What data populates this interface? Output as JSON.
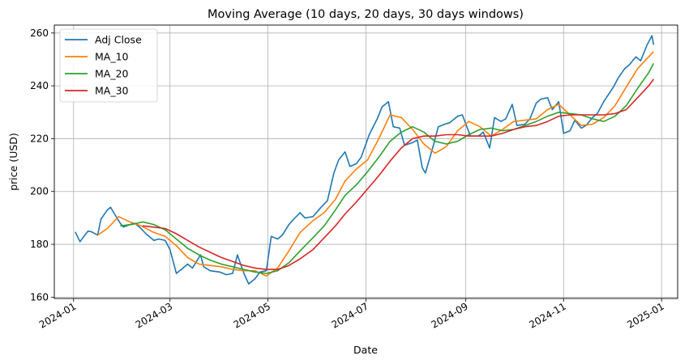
{
  "chart_data": {
    "type": "line",
    "title": "Moving Average (10 days, 20 days, 30 days windows)",
    "xlabel": "Date",
    "ylabel": "price (USD)",
    "grid": true,
    "legend": "top-left",
    "xlim": [
      "2023-12-20",
      "2025-01-11"
    ],
    "ylim": [
      159.5,
      263.0
    ],
    "xticks": [
      "2024-01",
      "2024-03",
      "2024-05",
      "2024-07",
      "2024-09",
      "2024-11",
      "2025-01"
    ],
    "yticks": [
      160,
      180,
      200,
      220,
      240,
      260
    ],
    "series": [
      {
        "name": "Adj Close",
        "color": "#1f77b4",
        "points": [
          [
            "2024-01-02",
            184.7
          ],
          [
            "2024-01-05",
            181.0
          ],
          [
            "2024-01-08",
            183.5
          ],
          [
            "2024-01-10",
            185.0
          ],
          [
            "2024-01-12",
            184.8
          ],
          [
            "2024-01-16",
            183.5
          ],
          [
            "2024-01-18",
            189.5
          ],
          [
            "2024-01-22",
            193.0
          ],
          [
            "2024-01-24",
            194.0
          ],
          [
            "2024-01-26",
            192.0
          ],
          [
            "2024-01-30",
            188.0
          ],
          [
            "2024-02-01",
            186.5
          ],
          [
            "2024-02-05",
            187.5
          ],
          [
            "2024-02-08",
            188.0
          ],
          [
            "2024-02-12",
            186.0
          ],
          [
            "2024-02-15",
            184.0
          ],
          [
            "2024-02-20",
            181.5
          ],
          [
            "2024-02-23",
            182.0
          ],
          [
            "2024-02-27",
            181.5
          ],
          [
            "2024-03-01",
            178.0
          ],
          [
            "2024-03-05",
            169.0
          ],
          [
            "2024-03-08",
            170.5
          ],
          [
            "2024-03-12",
            172.5
          ],
          [
            "2024-03-15",
            171.0
          ],
          [
            "2024-03-20",
            176.0
          ],
          [
            "2024-03-22",
            171.5
          ],
          [
            "2024-03-26",
            170.0
          ],
          [
            "2024-04-01",
            169.5
          ],
          [
            "2024-04-05",
            168.5
          ],
          [
            "2024-04-09",
            169.0
          ],
          [
            "2024-04-12",
            176.0
          ],
          [
            "2024-04-16",
            169.0
          ],
          [
            "2024-04-19",
            165.0
          ],
          [
            "2024-04-23",
            167.0
          ],
          [
            "2024-04-26",
            169.5
          ],
          [
            "2024-04-30",
            170.0
          ],
          [
            "2024-05-03",
            183.0
          ],
          [
            "2024-05-07",
            182.0
          ],
          [
            "2024-05-10",
            183.5
          ],
          [
            "2024-05-14",
            187.5
          ],
          [
            "2024-05-17",
            189.5
          ],
          [
            "2024-05-21",
            192.0
          ],
          [
            "2024-05-24",
            190.0
          ],
          [
            "2024-05-29",
            190.5
          ],
          [
            "2024-06-03",
            194.0
          ],
          [
            "2024-06-07",
            196.5
          ],
          [
            "2024-06-11",
            207.0
          ],
          [
            "2024-06-14",
            212.0
          ],
          [
            "2024-06-18",
            215.0
          ],
          [
            "2024-06-21",
            209.5
          ],
          [
            "2024-06-25",
            210.5
          ],
          [
            "2024-06-28",
            213.0
          ],
          [
            "2024-07-03",
            221.5
          ],
          [
            "2024-07-08",
            227.5
          ],
          [
            "2024-07-11",
            232.0
          ],
          [
            "2024-07-15",
            234.0
          ],
          [
            "2024-07-18",
            224.5
          ],
          [
            "2024-07-22",
            224.0
          ],
          [
            "2024-07-25",
            217.5
          ],
          [
            "2024-07-30",
            218.5
          ],
          [
            "2024-08-02",
            219.5
          ],
          [
            "2024-08-05",
            209.0
          ],
          [
            "2024-08-07",
            207.0
          ],
          [
            "2024-08-12",
            217.5
          ],
          [
            "2024-08-15",
            224.5
          ],
          [
            "2024-08-19",
            225.5
          ],
          [
            "2024-08-22",
            226.0
          ],
          [
            "2024-08-27",
            228.5
          ],
          [
            "2024-08-30",
            229.0
          ],
          [
            "2024-09-04",
            221.0
          ],
          [
            "2024-09-09",
            221.0
          ],
          [
            "2024-09-12",
            222.5
          ],
          [
            "2024-09-16",
            216.5
          ],
          [
            "2024-09-19",
            228.0
          ],
          [
            "2024-09-23",
            226.5
          ],
          [
            "2024-09-26",
            227.5
          ],
          [
            "2024-09-30",
            233.0
          ],
          [
            "2024-10-03",
            225.0
          ],
          [
            "2024-10-08",
            225.5
          ],
          [
            "2024-10-11",
            227.5
          ],
          [
            "2024-10-15",
            233.5
          ],
          [
            "2024-10-18",
            235.0
          ],
          [
            "2024-10-22",
            235.5
          ],
          [
            "2024-10-25",
            231.0
          ],
          [
            "2024-10-29",
            234.0
          ],
          [
            "2024-11-01",
            222.0
          ],
          [
            "2024-11-05",
            223.0
          ],
          [
            "2024-11-08",
            227.0
          ],
          [
            "2024-11-12",
            224.0
          ],
          [
            "2024-11-15",
            225.0
          ],
          [
            "2024-11-19",
            228.0
          ],
          [
            "2024-11-22",
            229.5
          ],
          [
            "2024-11-26",
            234.0
          ],
          [
            "2024-12-02",
            239.5
          ],
          [
            "2024-12-05",
            243.0
          ],
          [
            "2024-12-09",
            246.5
          ],
          [
            "2024-12-12",
            248.0
          ],
          [
            "2024-12-16",
            251.0
          ],
          [
            "2024-12-19",
            249.5
          ],
          [
            "2024-12-23",
            255.5
          ],
          [
            "2024-12-26",
            259.0
          ],
          [
            "2024-12-27",
            255.5
          ]
        ]
      },
      {
        "name": "MA_10",
        "color": "#ff7f0e",
        "points": [
          [
            "2024-01-16",
            183.5
          ],
          [
            "2024-01-22",
            186.0
          ],
          [
            "2024-01-29",
            190.5
          ],
          [
            "2024-02-05",
            188.5
          ],
          [
            "2024-02-12",
            187.0
          ],
          [
            "2024-02-20",
            184.5
          ],
          [
            "2024-02-27",
            183.0
          ],
          [
            "2024-03-05",
            179.5
          ],
          [
            "2024-03-12",
            175.0
          ],
          [
            "2024-03-19",
            172.5
          ],
          [
            "2024-03-26",
            172.0
          ],
          [
            "2024-04-02",
            171.5
          ],
          [
            "2024-04-09",
            170.5
          ],
          [
            "2024-04-16",
            170.0
          ],
          [
            "2024-04-23",
            170.0
          ],
          [
            "2024-04-30",
            168.0
          ],
          [
            "2024-05-07",
            171.0
          ],
          [
            "2024-05-14",
            177.5
          ],
          [
            "2024-05-21",
            184.5
          ],
          [
            "2024-05-29",
            189.0
          ],
          [
            "2024-06-05",
            192.0
          ],
          [
            "2024-06-12",
            197.0
          ],
          [
            "2024-06-18",
            204.0
          ],
          [
            "2024-06-25",
            208.5
          ],
          [
            "2024-07-02",
            212.0
          ],
          [
            "2024-07-09",
            220.0
          ],
          [
            "2024-07-16",
            229.0
          ],
          [
            "2024-07-23",
            228.0
          ],
          [
            "2024-07-30",
            223.5
          ],
          [
            "2024-08-06",
            218.0
          ],
          [
            "2024-08-13",
            214.5
          ],
          [
            "2024-08-20",
            217.0
          ],
          [
            "2024-08-27",
            223.0
          ],
          [
            "2024-09-03",
            226.5
          ],
          [
            "2024-09-10",
            224.5
          ],
          [
            "2024-09-17",
            221.0
          ],
          [
            "2024-09-24",
            223.5
          ],
          [
            "2024-10-01",
            226.5
          ],
          [
            "2024-10-08",
            227.0
          ],
          [
            "2024-10-15",
            227.5
          ],
          [
            "2024-10-22",
            231.0
          ],
          [
            "2024-10-29",
            233.0
          ],
          [
            "2024-11-05",
            229.0
          ],
          [
            "2024-11-12",
            225.0
          ],
          [
            "2024-11-19",
            225.5
          ],
          [
            "2024-11-26",
            228.0
          ],
          [
            "2024-12-03",
            232.5
          ],
          [
            "2024-12-10",
            239.5
          ],
          [
            "2024-12-17",
            246.5
          ],
          [
            "2024-12-24",
            251.0
          ],
          [
            "2024-12-27",
            253.0
          ]
        ]
      },
      {
        "name": "MA_20",
        "color": "#2ca02c",
        "points": [
          [
            "2024-01-30",
            187.0
          ],
          [
            "2024-02-06",
            187.5
          ],
          [
            "2024-02-13",
            188.5
          ],
          [
            "2024-02-20",
            187.5
          ],
          [
            "2024-02-27",
            185.5
          ],
          [
            "2024-03-05",
            182.0
          ],
          [
            "2024-03-12",
            178.5
          ],
          [
            "2024-03-19",
            176.0
          ],
          [
            "2024-03-26",
            174.0
          ],
          [
            "2024-04-02",
            172.5
          ],
          [
            "2024-04-09",
            171.5
          ],
          [
            "2024-04-16",
            170.5
          ],
          [
            "2024-04-23",
            169.5
          ],
          [
            "2024-04-30",
            169.0
          ],
          [
            "2024-05-07",
            170.0
          ],
          [
            "2024-05-14",
            173.0
          ],
          [
            "2024-05-21",
            177.5
          ],
          [
            "2024-05-29",
            182.5
          ],
          [
            "2024-06-05",
            187.0
          ],
          [
            "2024-06-12",
            193.0
          ],
          [
            "2024-06-18",
            198.5
          ],
          [
            "2024-06-25",
            202.5
          ],
          [
            "2024-07-02",
            207.5
          ],
          [
            "2024-07-09",
            213.0
          ],
          [
            "2024-07-16",
            219.0
          ],
          [
            "2024-07-23",
            222.5
          ],
          [
            "2024-07-30",
            224.5
          ],
          [
            "2024-08-06",
            222.5
          ],
          [
            "2024-08-13",
            219.0
          ],
          [
            "2024-08-20",
            218.0
          ],
          [
            "2024-08-27",
            219.0
          ],
          [
            "2024-09-03",
            221.5
          ],
          [
            "2024-09-10",
            223.5
          ],
          [
            "2024-09-17",
            224.0
          ],
          [
            "2024-09-24",
            223.0
          ],
          [
            "2024-10-01",
            223.5
          ],
          [
            "2024-10-08",
            225.0
          ],
          [
            "2024-10-15",
            226.5
          ],
          [
            "2024-10-22",
            228.5
          ],
          [
            "2024-10-29",
            230.0
          ],
          [
            "2024-11-05",
            229.5
          ],
          [
            "2024-11-12",
            229.0
          ],
          [
            "2024-11-19",
            227.5
          ],
          [
            "2024-11-26",
            226.5
          ],
          [
            "2024-12-03",
            228.5
          ],
          [
            "2024-12-10",
            232.5
          ],
          [
            "2024-12-17",
            239.0
          ],
          [
            "2024-12-24",
            245.0
          ],
          [
            "2024-12-27",
            248.5
          ]
        ]
      },
      {
        "name": "MA_30",
        "color": "#d62728",
        "points": [
          [
            "2024-02-13",
            187.0
          ],
          [
            "2024-02-20",
            186.5
          ],
          [
            "2024-02-27",
            186.0
          ],
          [
            "2024-03-05",
            184.0
          ],
          [
            "2024-03-12",
            181.5
          ],
          [
            "2024-03-19",
            179.0
          ],
          [
            "2024-03-26",
            177.0
          ],
          [
            "2024-04-02",
            175.0
          ],
          [
            "2024-04-09",
            173.5
          ],
          [
            "2024-04-16",
            172.0
          ],
          [
            "2024-04-23",
            171.0
          ],
          [
            "2024-04-30",
            170.5
          ],
          [
            "2024-05-07",
            170.5
          ],
          [
            "2024-05-14",
            172.0
          ],
          [
            "2024-05-21",
            174.5
          ],
          [
            "2024-05-29",
            178.0
          ],
          [
            "2024-06-05",
            182.5
          ],
          [
            "2024-06-12",
            187.0
          ],
          [
            "2024-06-18",
            191.5
          ],
          [
            "2024-06-25",
            196.0
          ],
          [
            "2024-07-02",
            201.0
          ],
          [
            "2024-07-09",
            206.0
          ],
          [
            "2024-07-16",
            211.5
          ],
          [
            "2024-07-23",
            216.5
          ],
          [
            "2024-07-30",
            220.0
          ],
          [
            "2024-08-06",
            221.0
          ],
          [
            "2024-08-13",
            221.0
          ],
          [
            "2024-08-20",
            221.5
          ],
          [
            "2024-08-27",
            221.5
          ],
          [
            "2024-09-03",
            221.0
          ],
          [
            "2024-09-10",
            221.0
          ],
          [
            "2024-09-17",
            221.0
          ],
          [
            "2024-09-24",
            222.0
          ],
          [
            "2024-10-01",
            223.5
          ],
          [
            "2024-10-08",
            224.5
          ],
          [
            "2024-10-15",
            225.0
          ],
          [
            "2024-10-22",
            226.5
          ],
          [
            "2024-10-29",
            228.5
          ],
          [
            "2024-11-05",
            229.0
          ],
          [
            "2024-11-12",
            229.0
          ],
          [
            "2024-11-19",
            229.0
          ],
          [
            "2024-11-26",
            229.0
          ],
          [
            "2024-12-03",
            229.5
          ],
          [
            "2024-12-10",
            231.0
          ],
          [
            "2024-12-17",
            235.5
          ],
          [
            "2024-12-24",
            240.0
          ],
          [
            "2024-12-27",
            242.5
          ]
        ]
      }
    ]
  }
}
